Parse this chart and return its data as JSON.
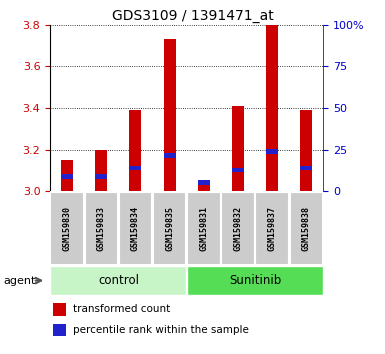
{
  "title": "GDS3109 / 1391471_at",
  "samples": [
    "GSM159830",
    "GSM159833",
    "GSM159834",
    "GSM159835",
    "GSM159831",
    "GSM159832",
    "GSM159837",
    "GSM159838"
  ],
  "red_values": [
    3.15,
    3.2,
    3.39,
    3.73,
    3.05,
    3.41,
    3.8,
    3.39
  ],
  "blue_values": [
    3.06,
    3.06,
    3.1,
    3.16,
    3.03,
    3.09,
    3.18,
    3.1
  ],
  "blue_heights": [
    0.022,
    0.022,
    0.022,
    0.022,
    0.022,
    0.022,
    0.022,
    0.022
  ],
  "ymin": 3.0,
  "ymax": 3.8,
  "yticks": [
    3.0,
    3.2,
    3.4,
    3.6,
    3.8
  ],
  "right_ytick_vals": [
    3.0,
    3.2,
    3.4,
    3.6,
    3.8
  ],
  "right_yticklabels": [
    "0",
    "25",
    "50",
    "75",
    "100%"
  ],
  "groups": [
    {
      "label": "control",
      "start": 0,
      "end": 4,
      "color": "#c8f5c8"
    },
    {
      "label": "Sunitinib",
      "start": 4,
      "end": 8,
      "color": "#55dd55"
    }
  ],
  "bar_color_red": "#cc0000",
  "bar_color_blue": "#2222cc",
  "bar_width": 0.35,
  "tick_label_color_left": "#cc0000",
  "tick_label_color_right": "#0000cc",
  "legend_red_label": "transformed count",
  "legend_blue_label": "percentile rank within the sample"
}
